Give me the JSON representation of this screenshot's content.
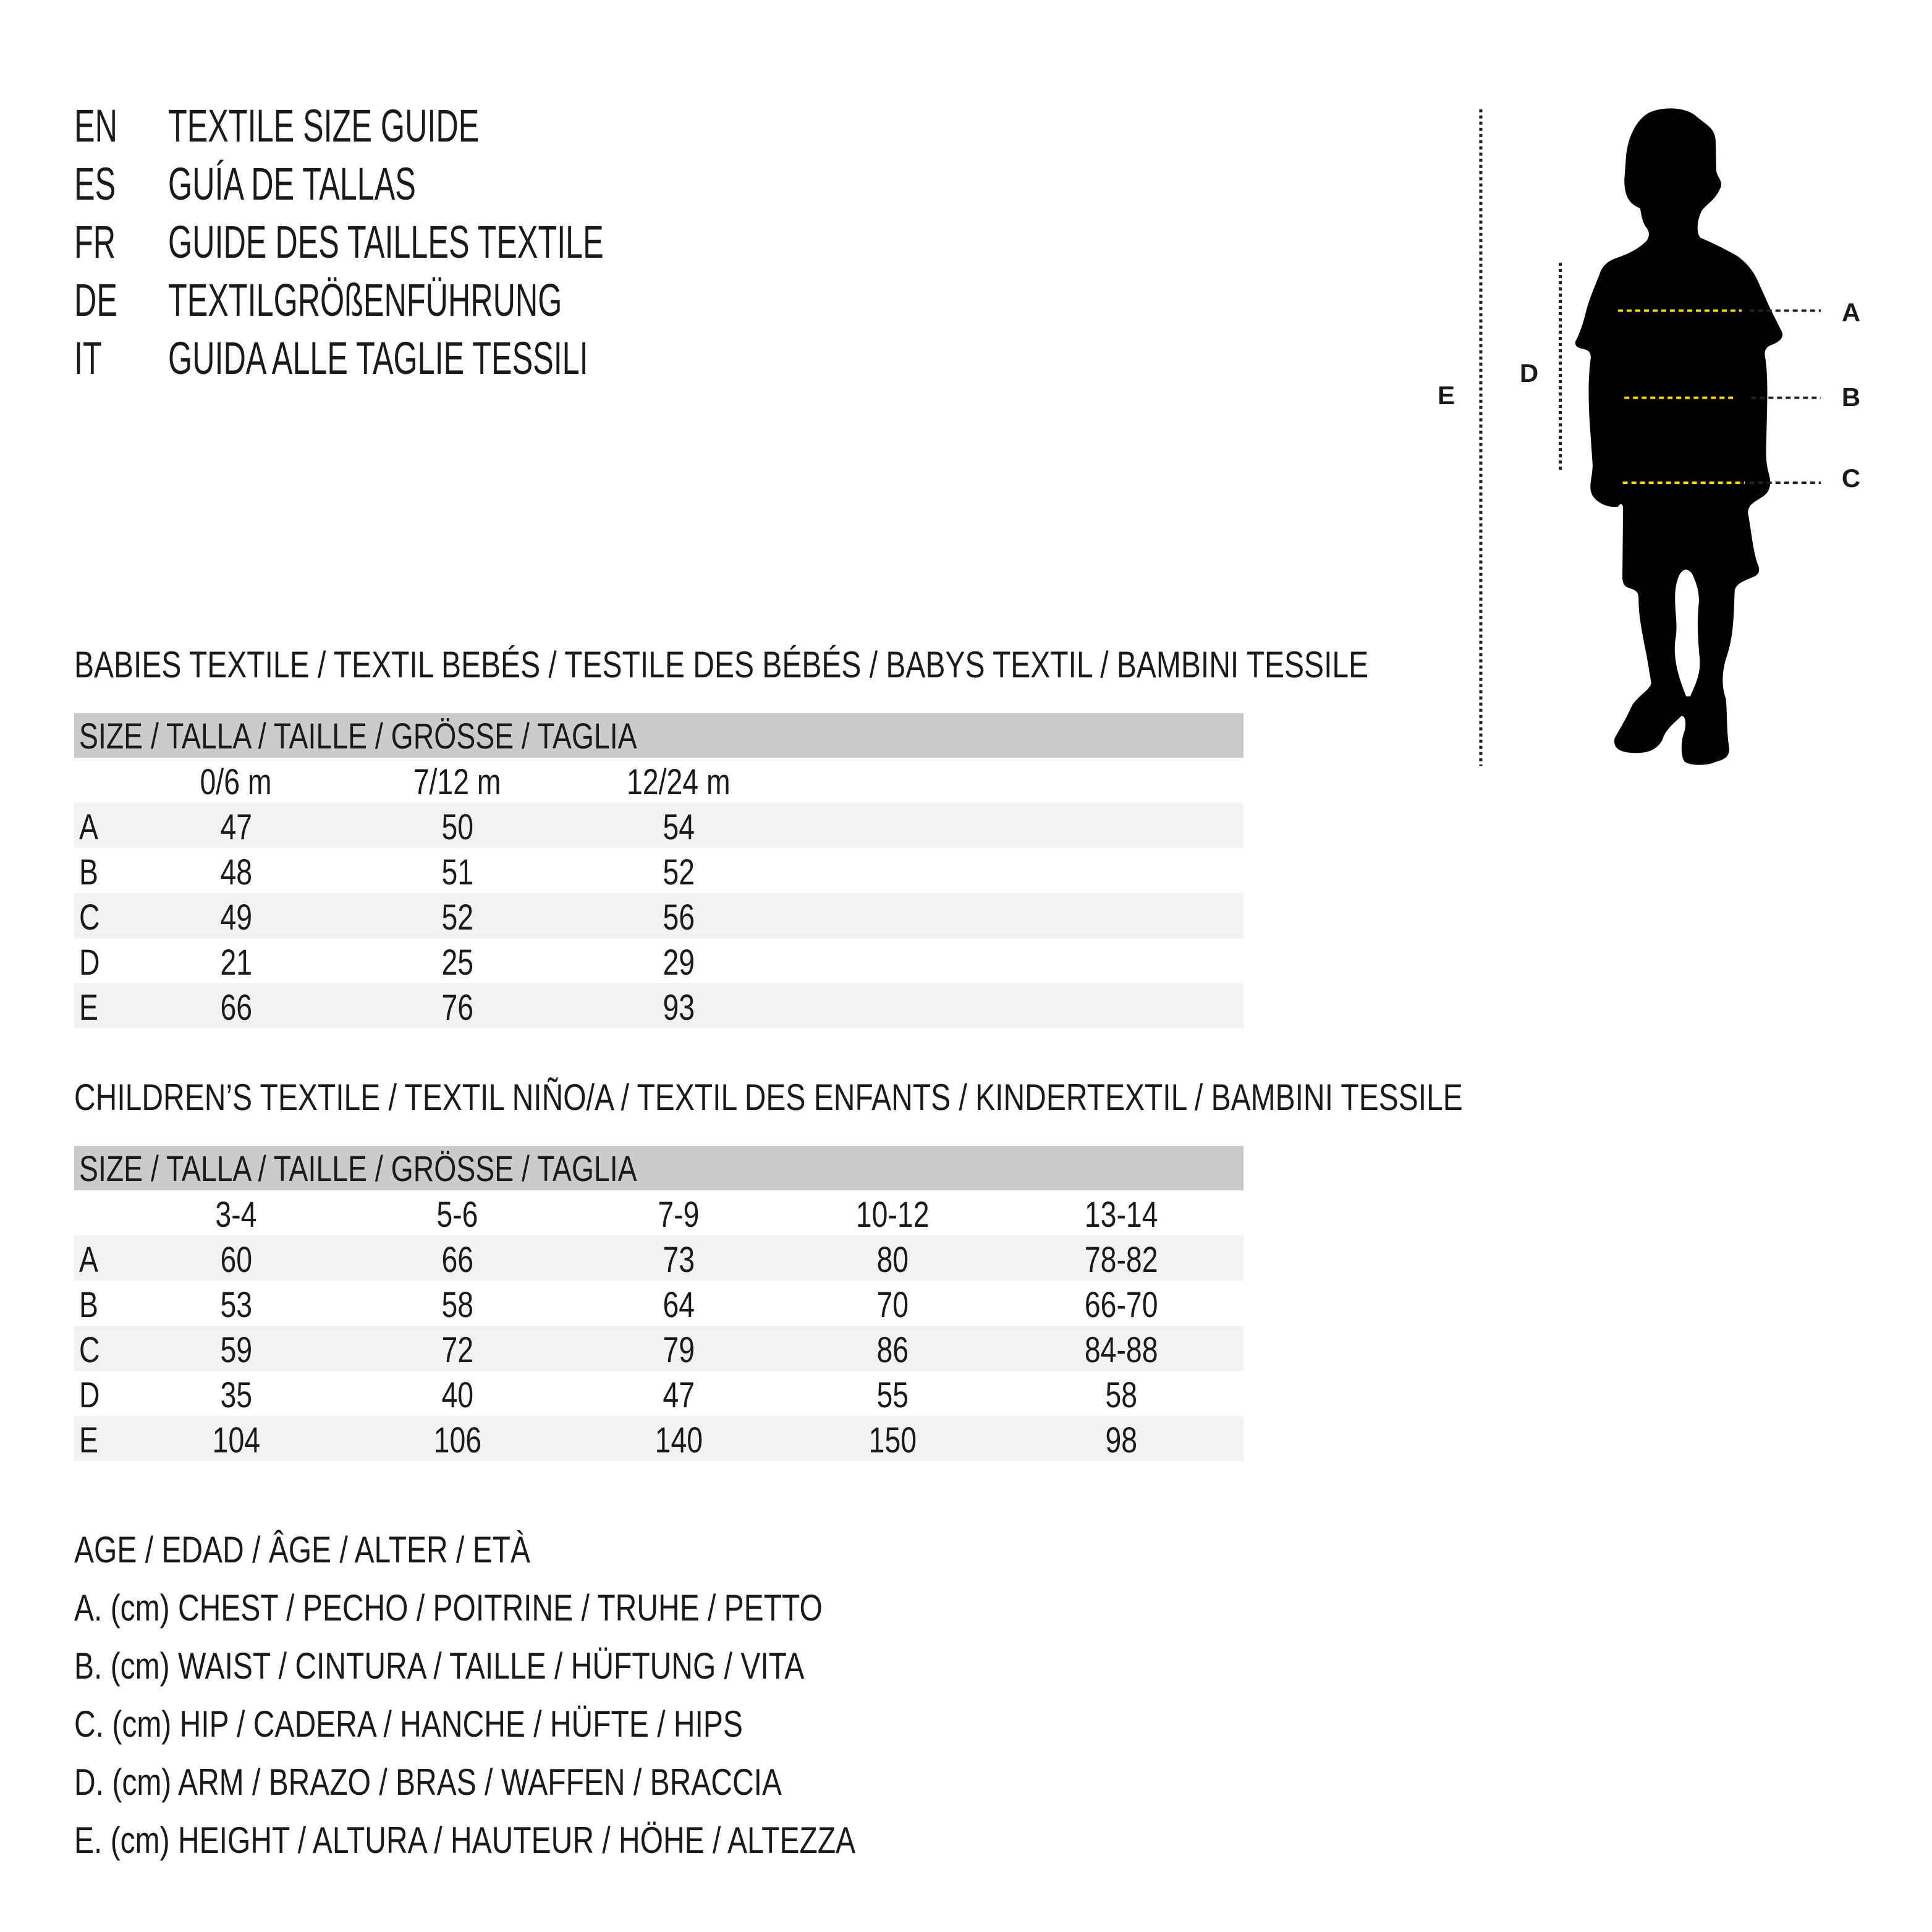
{
  "header": {
    "lines": [
      {
        "code": "EN",
        "text": "TEXTILE SIZE GUIDE"
      },
      {
        "code": "ES",
        "text": "GUÍA DE TALLAS"
      },
      {
        "code": "FR",
        "text": "GUIDE DES TAILLES TEXTILE"
      },
      {
        "code": "DE",
        "text": "TEXTILGRÖßENFÜHRUNG"
      },
      {
        "code": "IT",
        "text": "GUIDA ALLE TAGLIE TESSILI"
      }
    ]
  },
  "figure": {
    "labels": {
      "a": "A",
      "b": "B",
      "c": "C",
      "d": "D",
      "e": "E"
    },
    "measure_line_color": "#f5d90a",
    "icon": "child-silhouette-icon"
  },
  "babies": {
    "title": "BABIES TEXTILE / TEXTIL BEBÉS / TESTILE DES BÉBÉS / BABYS TEXTIL / BAMBINI TESSILE",
    "size_header": "SIZE / TALLA / TAILLE / GRÖSSE / TAGLIA",
    "columns": [
      "0/6 m",
      "7/12 m",
      "12/24 m"
    ],
    "rows": [
      {
        "label": "A",
        "values": [
          "47",
          "50",
          "54"
        ]
      },
      {
        "label": "B",
        "values": [
          "48",
          "51",
          "52"
        ]
      },
      {
        "label": "C",
        "values": [
          "49",
          "52",
          "56"
        ]
      },
      {
        "label": "D",
        "values": [
          "21",
          "25",
          "29"
        ]
      },
      {
        "label": "E",
        "values": [
          "66",
          "76",
          "93"
        ]
      }
    ]
  },
  "children": {
    "title": "CHILDREN’S TEXTILE / TEXTIL NIÑO/A / TEXTIL DES ENFANTS / KINDERTEXTIL / BAMBINI TESSILE",
    "size_header": "SIZE / TALLA / TAILLE / GRÖSSE / TAGLIA",
    "columns": [
      "3-4",
      "5-6",
      "7-9",
      "10-12",
      "13-14"
    ],
    "rows": [
      {
        "label": "A",
        "values": [
          "60",
          "66",
          "73",
          "80",
          "78-82"
        ]
      },
      {
        "label": "B",
        "values": [
          "53",
          "58",
          "64",
          "70",
          "66-70"
        ]
      },
      {
        "label": "C",
        "values": [
          "59",
          "72",
          "79",
          "86",
          "84-88"
        ]
      },
      {
        "label": "D",
        "values": [
          "35",
          "40",
          "47",
          "55",
          "58"
        ]
      },
      {
        "label": "E",
        "values": [
          "104",
          "106",
          "140",
          "150",
          "98"
        ]
      }
    ]
  },
  "legend": [
    "AGE / EDAD / ÂGE / ALTER / ETÀ",
    "A. (cm) CHEST / PECHO / POITRINE / TRUHE / PETTO",
    "B. (cm) WAIST / CINTURA / TAILLE / HÜFTUNG / VITA",
    "C. (cm) HIP / CADERA / HANCHE / HÜFTE / HIPS",
    "D. (cm) ARM / BRAZO / BRAS / WAFFEN / BRACCIA",
    "E. (cm) HEIGHT / ALTURA / HAUTEUR / HÖHE / ALTEZZA"
  ]
}
